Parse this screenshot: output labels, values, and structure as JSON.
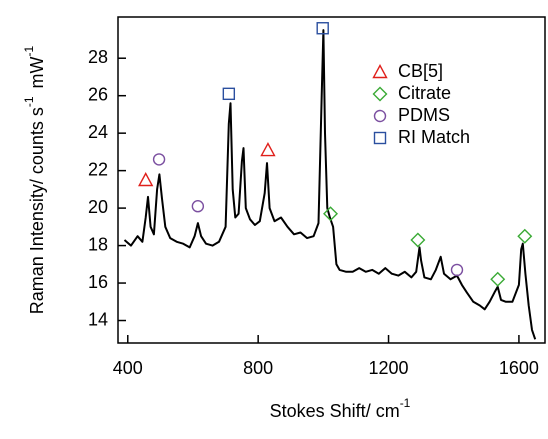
{
  "chart_data": {
    "type": "line",
    "xlabel": "Stokes Shift/ cm",
    "xlabel_sup": "-1",
    "ylabel": "Raman Intensity/ counts s",
    "ylabel_sup1": "-1",
    "ylabel_unit": "mW",
    "ylabel_sup2": "-1",
    "color": "#000000",
    "x": [
      390,
      410,
      430,
      445,
      455,
      462,
      470,
      480,
      490,
      497,
      505,
      515,
      530,
      550,
      570,
      590,
      605,
      615,
      625,
      640,
      660,
      680,
      700,
      710,
      715,
      722,
      730,
      740,
      750,
      755,
      762,
      775,
      790,
      805,
      820,
      827,
      835,
      850,
      870,
      890,
      910,
      930,
      950,
      970,
      985,
      995,
      1000,
      1005,
      1012,
      1020,
      1030,
      1040,
      1050,
      1070,
      1090,
      1110,
      1130,
      1150,
      1170,
      1190,
      1210,
      1230,
      1250,
      1270,
      1285,
      1295,
      1300,
      1310,
      1330,
      1345,
      1360,
      1370,
      1390,
      1410,
      1425,
      1440,
      1460,
      1480,
      1495,
      1510,
      1525,
      1535,
      1545,
      1560,
      1580,
      1600,
      1607,
      1612,
      1620,
      1630,
      1640,
      1650
    ],
    "values": [
      18.3,
      18.0,
      18.5,
      18.2,
      19.5,
      20.6,
      19.0,
      18.6,
      21.0,
      21.8,
      20.5,
      19.0,
      18.4,
      18.2,
      18.1,
      17.9,
      18.5,
      19.2,
      18.5,
      18.1,
      18.0,
      18.2,
      19.0,
      24.5,
      25.6,
      21.0,
      19.5,
      19.7,
      22.5,
      23.2,
      20.0,
      19.4,
      19.1,
      19.3,
      20.8,
      22.4,
      20.0,
      19.3,
      19.5,
      19.0,
      18.6,
      18.7,
      18.4,
      18.5,
      19.2,
      26.0,
      29.5,
      24.0,
      20.0,
      19.5,
      19.0,
      17.0,
      16.7,
      16.6,
      16.6,
      16.8,
      16.6,
      16.7,
      16.5,
      16.8,
      16.5,
      16.4,
      16.6,
      16.3,
      16.6,
      17.9,
      17.2,
      16.3,
      16.2,
      16.7,
      17.4,
      16.5,
      16.2,
      16.4,
      15.9,
      15.5,
      15.0,
      14.8,
      14.6,
      15.0,
      15.5,
      15.8,
      15.1,
      15.0,
      15.0,
      15.9,
      17.8,
      18.1,
      16.5,
      14.8,
      13.5,
      13.0
    ],
    "markers": [
      {
        "name": "CB[5]",
        "color": "#e0201b",
        "symbol": "triangle",
        "x": [
          455,
          830
        ],
        "values": [
          21.5,
          23.1
        ]
      },
      {
        "name": "Citrate",
        "color": "#3aaa35",
        "symbol": "diamond",
        "x": [
          1022,
          1290,
          1535,
          1618
        ],
        "values": [
          19.7,
          18.3,
          16.2,
          18.5
        ]
      },
      {
        "name": "PDMS",
        "color": "#7b4fa0",
        "symbol": "circle",
        "x": [
          496,
          615,
          1410
        ],
        "values": [
          22.6,
          20.1,
          16.7
        ]
      },
      {
        "name": "RI Match",
        "color": "#2b4f9f",
        "symbol": "square",
        "x": [
          710,
          998
        ],
        "values": [
          26.1,
          29.6
        ]
      }
    ],
    "legend": "upper right",
    "xlim": [
      370,
      1680
    ],
    "xticks": [
      400,
      800,
      1200,
      1600
    ],
    "ylim": [
      12.8,
      30.2
    ],
    "yticks": [
      14,
      16,
      18,
      20,
      22,
      24,
      26,
      28
    ]
  }
}
